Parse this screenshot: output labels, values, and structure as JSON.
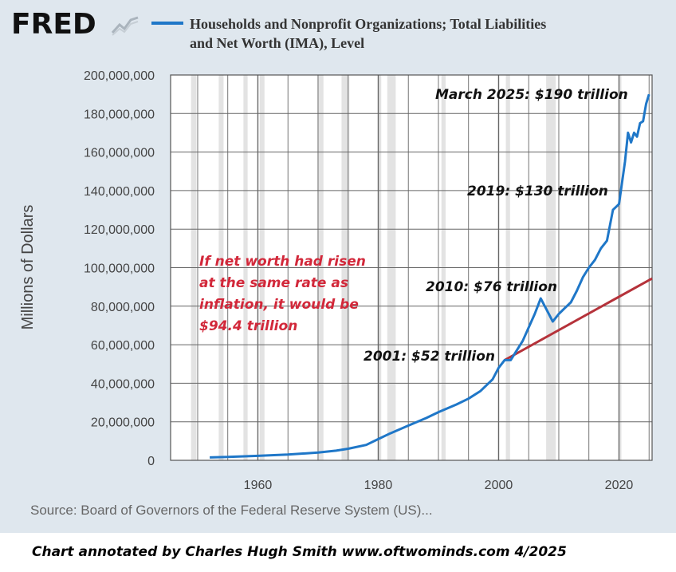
{
  "header": {
    "logo_text": "FRED",
    "logo_icon": "fred-line-chart-icon",
    "title_line1": "Households and Nonprofit Organizations; Total Liabilities",
    "title_line2": "and Net Worth (IMA), Level"
  },
  "source": "Source: Board of Governors of the Federal Reserve System (US)...",
  "credit": "Chart annotated by Charles Hugh Smith  www.oftwominds.com  4/2025",
  "colors": {
    "background": "#dfe7ee",
    "plot_background": "#ffffff",
    "series_line": "#1f77c8",
    "inflation_line": "#b5323a",
    "recession_shade": "#e3e3e3",
    "annotation_red": "#d2283a"
  },
  "chart_data": {
    "type": "line",
    "title": "Households and Nonprofit Organizations; Total Liabilities and Net Worth (IMA), Level",
    "xlabel": "",
    "ylabel": "Millions of Dollars",
    "xlim": [
      1945.5,
      2025.5
    ],
    "ylim": [
      0,
      200000000
    ],
    "x_ticks": [
      1960,
      1980,
      2000,
      2020
    ],
    "x_tick_labels": [
      "1960",
      "1980",
      "2000",
      "2020"
    ],
    "y_ticks": [
      0,
      20000000,
      40000000,
      60000000,
      80000000,
      100000000,
      120000000,
      140000000,
      160000000,
      180000000,
      200000000
    ],
    "y_tick_labels": [
      "0",
      "20,000,000",
      "40,000,000",
      "60,000,000",
      "80,000,000",
      "100,000,000",
      "120,000,000",
      "140,000,000",
      "160,000,000",
      "180,000,000",
      "200,000,000"
    ],
    "grid": true,
    "recessions": [
      [
        1948.9,
        1949.8
      ],
      [
        1953.5,
        1954.3
      ],
      [
        1957.6,
        1958.3
      ],
      [
        1960.3,
        1961.1
      ],
      [
        1969.9,
        1970.9
      ],
      [
        1973.9,
        1975.2
      ],
      [
        1980.0,
        1980.5
      ],
      [
        1981.5,
        1982.9
      ],
      [
        1990.5,
        1991.2
      ],
      [
        2001.2,
        2001.9
      ],
      [
        2007.9,
        2009.5
      ],
      [
        2020.1,
        2020.4
      ]
    ],
    "series": [
      {
        "name": "Households and Nonprofit Organizations; Total Liabilities and Net Worth (IMA), Level",
        "x": [
          1952,
          1955,
          1960,
          1965,
          1970,
          1973,
          1975,
          1978,
          1980,
          1982,
          1985,
          1988,
          1990,
          1993,
          1995,
          1997,
          1999,
          2000,
          2001,
          2002,
          2004,
          2006,
          2007,
          2008,
          2009,
          2010,
          2011,
          2012,
          2013,
          2014,
          2015,
          2016,
          2017,
          2018,
          2019,
          2020,
          2021,
          2021.5,
          2022,
          2022.5,
          2023,
          2023.5,
          2024,
          2024.5,
          2025
        ],
        "values": [
          1500000,
          1800000,
          2300000,
          3000000,
          4000000,
          5000000,
          6000000,
          8000000,
          11000000,
          14000000,
          18000000,
          22000000,
          25000000,
          29000000,
          32000000,
          36000000,
          42000000,
          48000000,
          52000000,
          52000000,
          62000000,
          76000000,
          84000000,
          78000000,
          72000000,
          76000000,
          79000000,
          82000000,
          88000000,
          95000000,
          100000000,
          104000000,
          110000000,
          114000000,
          130000000,
          133000000,
          155000000,
          170000000,
          165000000,
          170000000,
          168000000,
          175000000,
          176000000,
          185000000,
          190000000
        ]
      },
      {
        "name": "inflation path",
        "x": [
          2001,
          2025.5
        ],
        "values": [
          52000000,
          94400000
        ]
      }
    ],
    "annotations": [
      {
        "text": "March 2025: $190 trillion",
        "color": "black"
      },
      {
        "text": "2019: $130 trillion",
        "color": "black"
      },
      {
        "text": "2010: $76 trillion",
        "color": "black"
      },
      {
        "text": "2001: $52 trillion",
        "color": "black"
      },
      {
        "text": "If net worth had risen",
        "color": "red"
      },
      {
        "text": "at the same rate as",
        "color": "red"
      },
      {
        "text": "inflation, it would be",
        "color": "red"
      },
      {
        "text": "$94.4 trillion",
        "color": "red"
      }
    ]
  }
}
